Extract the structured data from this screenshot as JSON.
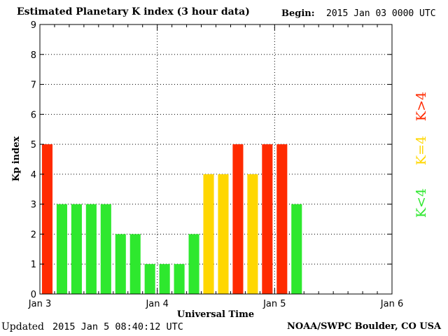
{
  "header": {
    "title": "Estimated Planetary K index (3 hour data)",
    "begin_label": "Begin:",
    "begin_value": "2015 Jan 03 0000 UTC"
  },
  "footer": {
    "updated_label": "Updated",
    "updated_value": "2015 Jan  5 08:40:12 UTC",
    "credit": "NOAA/SWPC Boulder, CO USA"
  },
  "legend": [
    {
      "label": "K>4",
      "color": "#ff2a00"
    },
    {
      "label": "K=4",
      "color": "#ffd700"
    },
    {
      "label": "K<4",
      "color": "#2ee82e"
    }
  ],
  "chart_data": {
    "type": "bar",
    "title": "Estimated Planetary K index (3 hour data)",
    "xlabel": "Universal Time",
    "ylabel": "Kp index",
    "ylim": [
      0,
      9
    ],
    "y_ticks": [
      "0",
      "1",
      "2",
      "3",
      "4",
      "5",
      "6",
      "7",
      "8",
      "9"
    ],
    "x_ticks": [
      "Jan 3",
      "Jan 4",
      "Jan 5",
      "Jan 6"
    ],
    "interval_hours": 3,
    "values": [
      5,
      3,
      3,
      3,
      3,
      2,
      2,
      1,
      1,
      1,
      2,
      4,
      4,
      5,
      4,
      5,
      5,
      3
    ],
    "grid": true,
    "colors": {
      "above": "#ff2a00",
      "equal": "#ffd700",
      "below": "#2ee82e"
    }
  }
}
